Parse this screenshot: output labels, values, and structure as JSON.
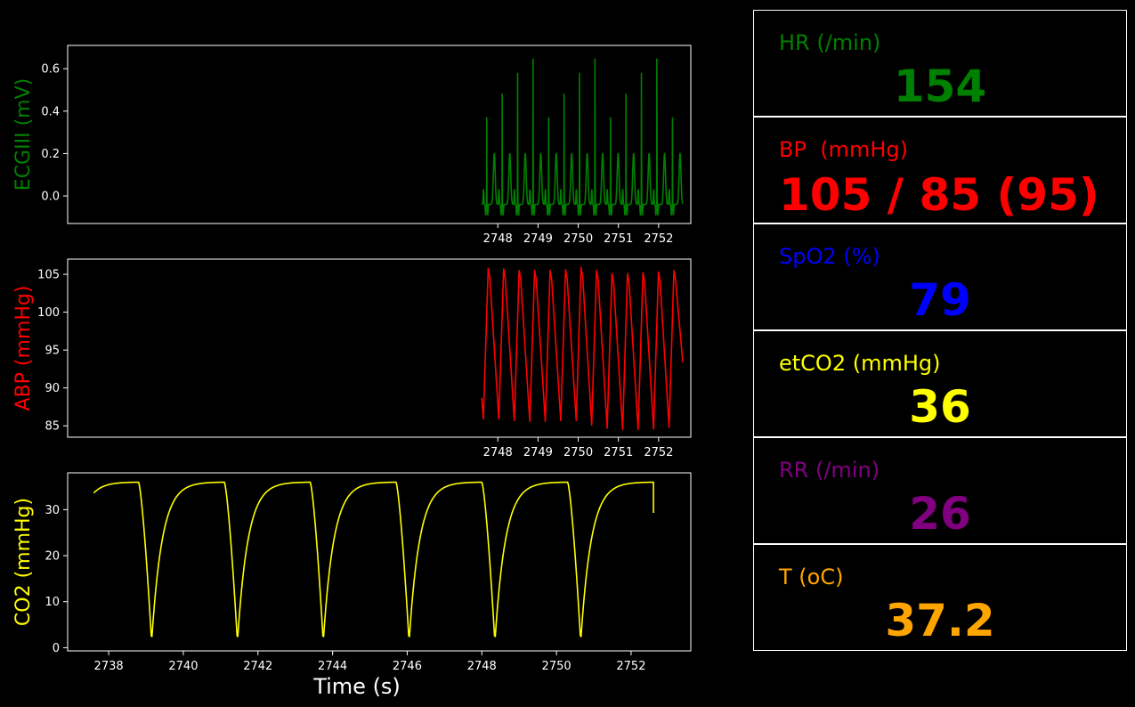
{
  "chart_data": [
    {
      "type": "line",
      "ylabel": "ECGIII (mV)",
      "color": "#008000",
      "xlim": [
        2737.3,
        2752.8
      ],
      "ylim": [
        -0.13,
        0.71
      ],
      "xticks": [
        2748,
        2749,
        2750,
        2751,
        2752
      ],
      "yticks": [
        0.0,
        0.2,
        0.4,
        0.6
      ],
      "ytick_labels": [
        "0.0",
        "0.2",
        "0.4",
        "0.6"
      ],
      "series": [
        {
          "x_start": 2747.6,
          "x_end": 2752.6,
          "beat_period": 0.385,
          "first_r_peak": 2747.72,
          "r_peak": 0.67,
          "t_peak": 0.2,
          "baseline": -0.04,
          "trough": -0.09
        }
      ]
    },
    {
      "type": "line",
      "ylabel": "ABP (mmHg)",
      "color": "#ff0000",
      "xlim": [
        2737.3,
        2752.8
      ],
      "ylim": [
        83.5,
        107
      ],
      "xticks": [
        2748,
        2749,
        2750,
        2751,
        2752
      ],
      "yticks": [
        85,
        90,
        95,
        100,
        105
      ],
      "ytick_labels": [
        "85",
        "90",
        "95",
        "100",
        "105"
      ],
      "series": [
        {
          "x_start": 2747.6,
          "x_end": 2752.6,
          "beat_period": 0.385,
          "first_trough": 2747.64,
          "start_value": 88.7,
          "end_value": 93.4,
          "peaks": [
            105.8,
            105.7,
            105.5,
            105.5,
            105.5,
            105.6,
            105.9,
            105.5,
            105.1,
            105.1,
            105.2,
            105.3,
            105.5
          ],
          "troughs": [
            85.9,
            85.9,
            85.7,
            85.6,
            85.6,
            85.7,
            85.7,
            85.1,
            84.7,
            84.5,
            84.5,
            84.6,
            84.8
          ]
        }
      ]
    },
    {
      "type": "line",
      "xlabel": "Time (s)",
      "ylabel": "CO2 (mmHg)",
      "color": "#ffff00",
      "xlim": [
        2736.9,
        2753.6
      ],
      "ylim": [
        -0.7,
        38
      ],
      "xticks": [
        2738,
        2740,
        2742,
        2744,
        2746,
        2748,
        2750,
        2752
      ],
      "yticks": [
        0,
        10,
        20,
        30
      ],
      "ytick_labels": [
        "0",
        "10",
        "20",
        "30"
      ],
      "series": [
        {
          "x_start": 2737.6,
          "x_end": 2752.6,
          "breath_period": 2.3,
          "first_fall": 2738.8,
          "plateau": 36.0,
          "minimum": 1.2,
          "end_value": 29.3
        }
      ]
    }
  ],
  "vitals": [
    {
      "label": "HR (/min)",
      "value": "154",
      "color": "#008000"
    },
    {
      "label": "BP  (mmHg)",
      "value": "105 / 85 (95)",
      "color": "#ff0000"
    },
    {
      "label": "SpO2 (%)",
      "value": "79",
      "color": "#0000ff"
    },
    {
      "label": "etCO2 (mmHg)",
      "value": "36",
      "color": "#ffff00"
    },
    {
      "label": "RR (/min)",
      "value": "26",
      "color": "#800080"
    },
    {
      "label": "T (oC)",
      "value": "37.2",
      "color": "#ffa500"
    }
  ]
}
